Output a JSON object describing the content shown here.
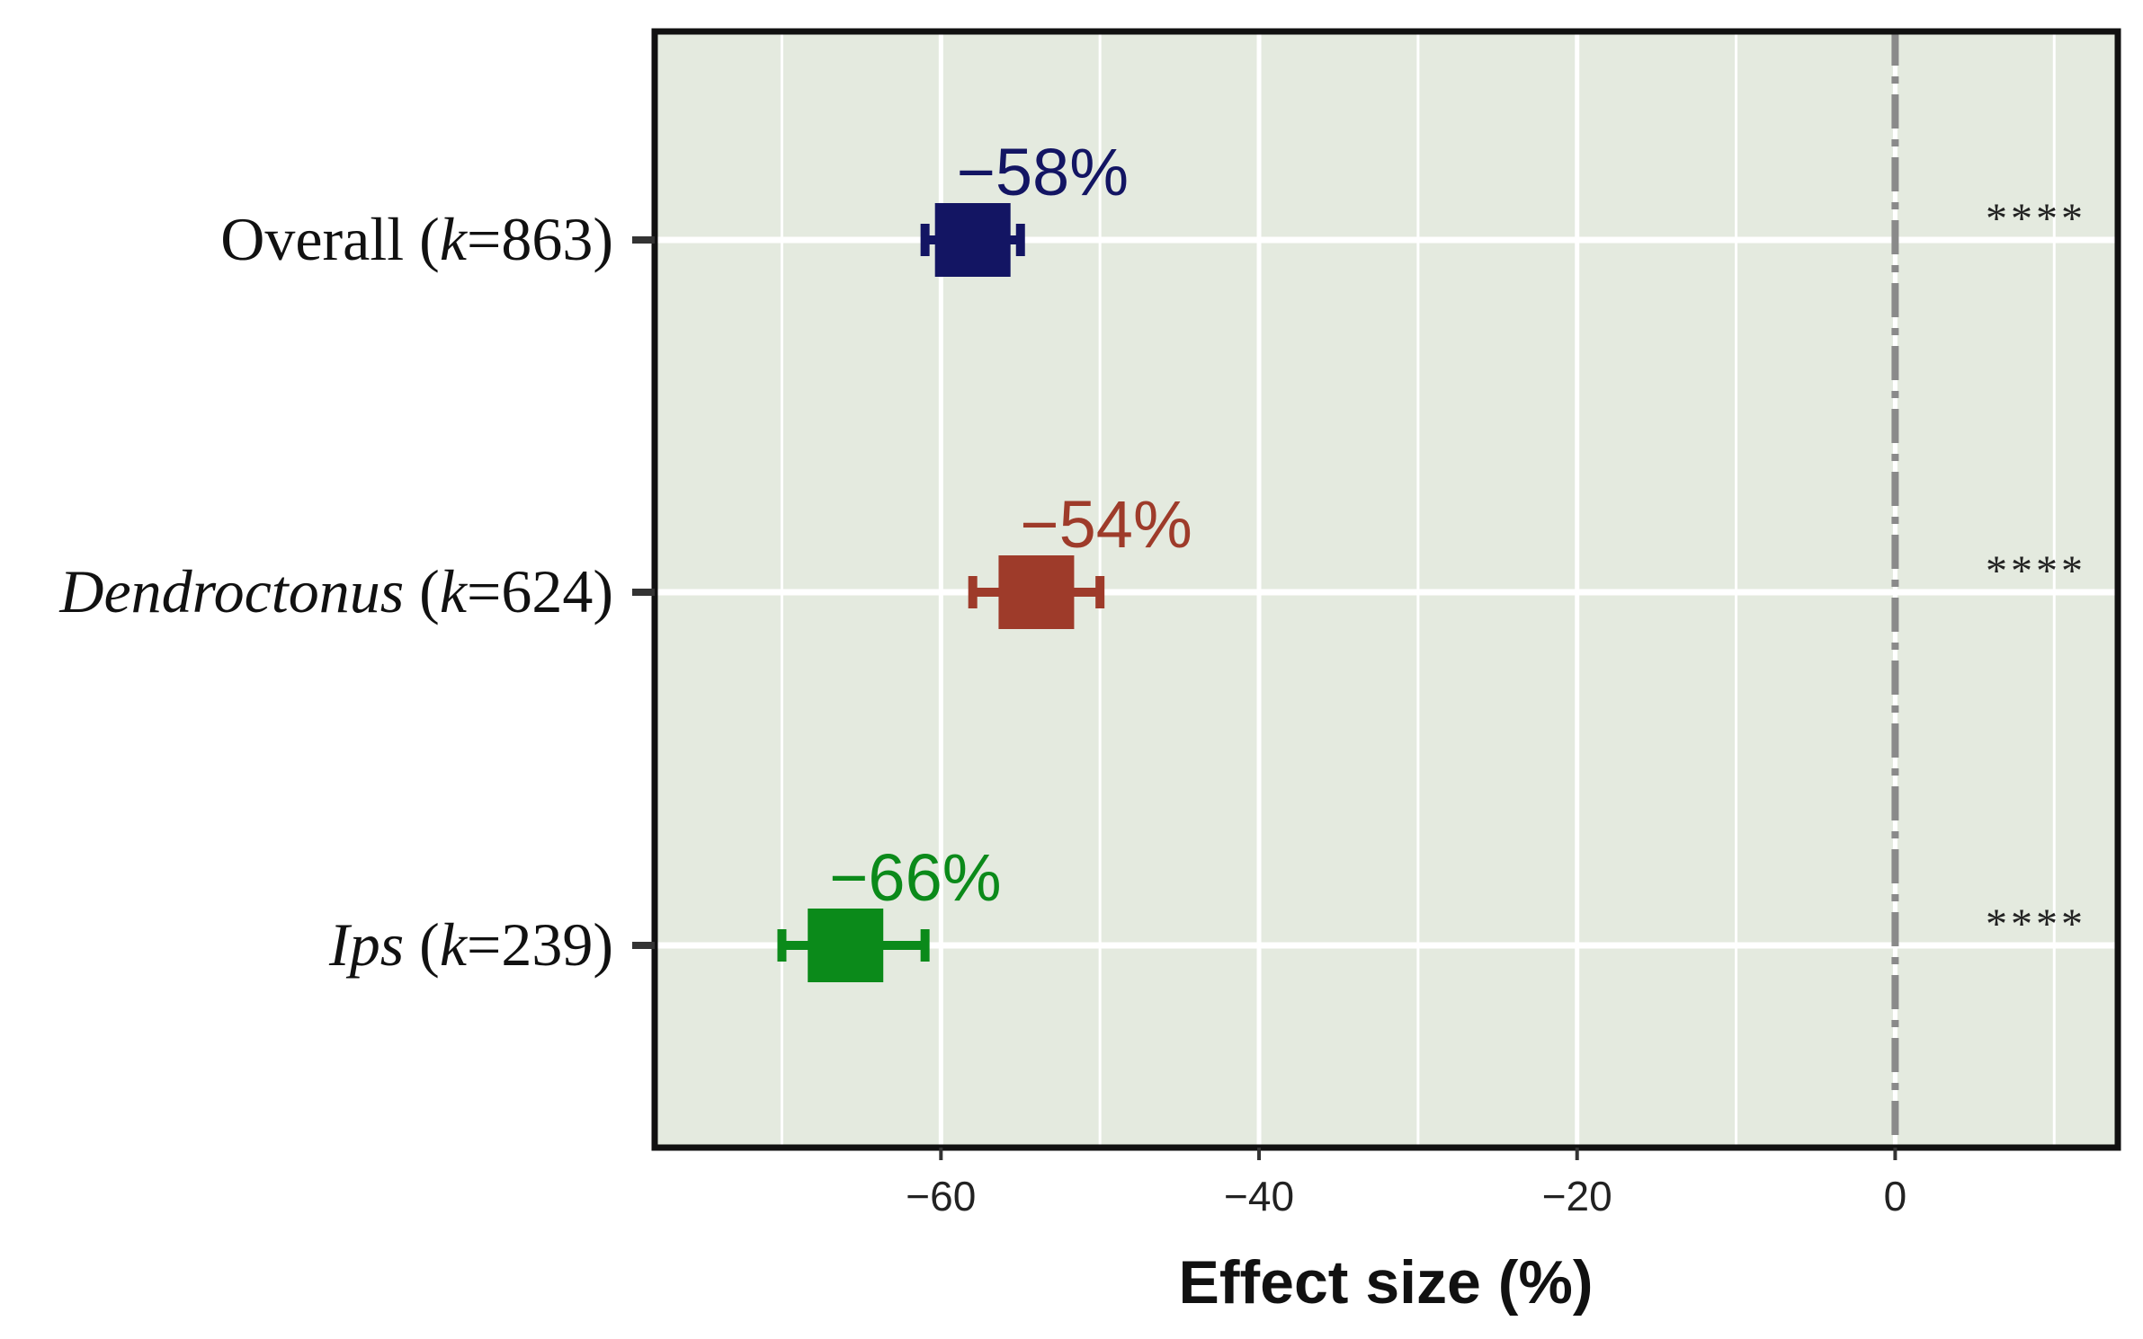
{
  "chart_data": {
    "type": "forest",
    "title": "",
    "xlabel": "Effect size (%)",
    "ylabel": "",
    "xlim": [
      -78,
      14
    ],
    "xticks": [
      -60,
      -40,
      -20,
      0
    ],
    "xtick_labels": [
      "−60",
      "−40",
      "−20",
      "0"
    ],
    "reference_line": 0,
    "grid": true,
    "background": "#e4eadf",
    "rows": [
      {
        "name_main": "Overall",
        "name_italic": false,
        "k_text": "=863)",
        "estimate": -58,
        "ci_low": -61,
        "ci_high": -55,
        "value_label": "−58%",
        "significance": "****",
        "color": "#131563"
      },
      {
        "name_main": "Dendroctonus",
        "name_italic": true,
        "k_text": "=624)",
        "estimate": -54,
        "ci_low": -58,
        "ci_high": -50,
        "value_label": "−54%",
        "significance": "****",
        "color": "#9e3b2a"
      },
      {
        "name_main": "Ips",
        "name_italic": true,
        "k_text": "=239)",
        "estimate": -66,
        "ci_low": -70,
        "ci_high": -61,
        "value_label": "−66%",
        "significance": "****",
        "color": "#0b8a1a"
      }
    ]
  }
}
